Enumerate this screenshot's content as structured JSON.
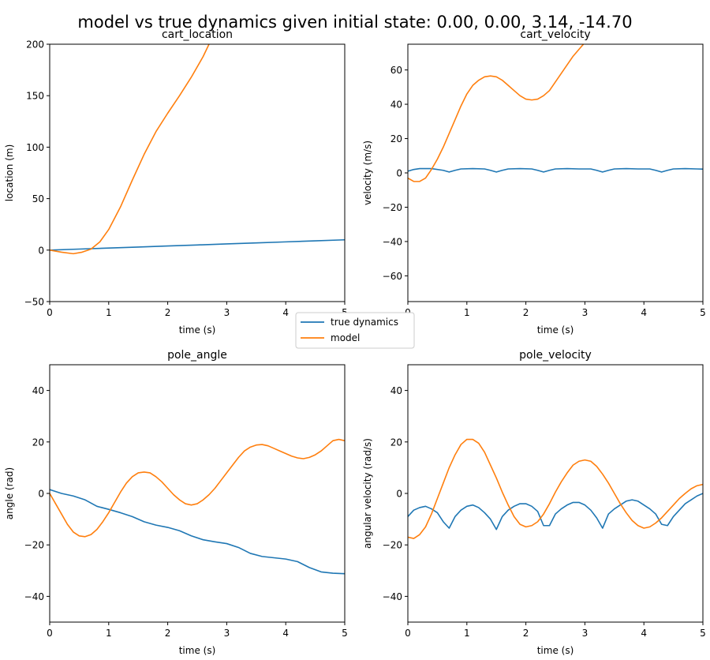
{
  "figure": {
    "suptitle": "model vs true dynamics given initial state: 0.00, 0.00, 3.14, -14.70",
    "colors": {
      "true": "#1f77b4",
      "model": "#ff7f0e"
    }
  },
  "legend": {
    "entries": [
      {
        "label": "true dynamics",
        "color": "#1f77b4"
      },
      {
        "label": "model",
        "color": "#ff7f0e"
      }
    ]
  },
  "chart_data": [
    {
      "type": "line",
      "title": "cart_location",
      "xlabel": "time (s)",
      "ylabel": "location (m)",
      "xlim": [
        0,
        5
      ],
      "ylim": [
        -50,
        200
      ],
      "xticks": [
        "0",
        "1",
        "2",
        "3",
        "4",
        "5"
      ],
      "yticks": [
        "−50",
        "0",
        "50",
        "100",
        "150",
        "200"
      ],
      "ytick_values": [
        -50,
        0,
        50,
        100,
        150,
        200
      ],
      "series": [
        {
          "name": "true dynamics",
          "color": "#1f77b4",
          "x": [
            0,
            0.5,
            1,
            1.5,
            2,
            2.5,
            3,
            3.5,
            4,
            4.5,
            5
          ],
          "y": [
            0,
            1,
            2,
            3,
            4,
            5,
            6,
            7,
            8,
            9,
            10
          ]
        },
        {
          "name": "model",
          "color": "#ff7f0e",
          "x": [
            0,
            0.2,
            0.4,
            0.55,
            0.7,
            0.85,
            1.0,
            1.2,
            1.4,
            1.6,
            1.8,
            2.0,
            2.2,
            2.4,
            2.6,
            2.8
          ],
          "y": [
            0,
            -2,
            -3.5,
            -2,
            1,
            8,
            20,
            42,
            68,
            93,
            115,
            133,
            150,
            168,
            188,
            212
          ]
        }
      ]
    },
    {
      "type": "line",
      "title": "cart_velocity",
      "xlabel": "time (s)",
      "ylabel": "velocity (m/s)",
      "xlim": [
        0,
        5
      ],
      "ylim": [
        -75,
        75
      ],
      "xticks": [
        "0",
        "1",
        "2",
        "3",
        "4",
        "5"
      ],
      "yticks": [
        "−60",
        "−40",
        "−20",
        "0",
        "20",
        "40",
        "60"
      ],
      "ytick_values": [
        -60,
        -40,
        -20,
        0,
        20,
        40,
        60
      ],
      "series": [
        {
          "name": "true dynamics",
          "color": "#1f77b4",
          "x": [
            0,
            0.1,
            0.2,
            0.4,
            0.6,
            0.7,
            0.8,
            0.9,
            1.1,
            1.3,
            1.4,
            1.5,
            1.6,
            1.7,
            1.9,
            2.1,
            2.2,
            2.3,
            2.4,
            2.5,
            2.7,
            2.9,
            3.1,
            3.2,
            3.3,
            3.4,
            3.5,
            3.7,
            3.9,
            4.1,
            4.2,
            4.3,
            4.4,
            4.5,
            4.7,
            4.9,
            5.0
          ],
          "y": [
            1,
            2,
            2.5,
            2.5,
            1.5,
            0.5,
            1.5,
            2.3,
            2.5,
            2.3,
            1.5,
            0.5,
            1.5,
            2.3,
            2.5,
            2.3,
            1.5,
            0.5,
            1.5,
            2.3,
            2.5,
            2.3,
            2.3,
            1.5,
            0.5,
            1.5,
            2.3,
            2.5,
            2.3,
            2.3,
            1.5,
            0.5,
            1.5,
            2.3,
            2.5,
            2.3,
            2.2
          ]
        },
        {
          "name": "model",
          "color": "#ff7f0e",
          "x": [
            0,
            0.1,
            0.2,
            0.3,
            0.4,
            0.5,
            0.6,
            0.7,
            0.8,
            0.9,
            1.0,
            1.1,
            1.2,
            1.3,
            1.4,
            1.5,
            1.6,
            1.7,
            1.8,
            1.9,
            2.0,
            2.1,
            2.2,
            2.3,
            2.4,
            2.5,
            2.6,
            2.7,
            2.8,
            2.9,
            3.0
          ],
          "y": [
            -3,
            -5,
            -5,
            -3,
            2,
            8,
            15,
            23,
            31,
            39,
            46,
            51,
            54,
            56,
            56.5,
            56,
            54,
            51,
            48,
            45,
            43,
            42.5,
            43,
            45,
            48,
            53,
            58,
            63,
            68,
            72,
            76
          ]
        }
      ]
    },
    {
      "type": "line",
      "title": "pole_angle",
      "xlabel": "time (s)",
      "ylabel": "angle (rad)",
      "xlim": [
        0,
        5
      ],
      "ylim": [
        -50,
        50
      ],
      "xticks": [
        "0",
        "1",
        "2",
        "3",
        "4",
        "5"
      ],
      "yticks": [
        "−40",
        "−20",
        "0",
        "20",
        "40"
      ],
      "ytick_values": [
        -40,
        -20,
        0,
        20,
        40
      ],
      "series": [
        {
          "name": "true dynamics",
          "color": "#1f77b4",
          "x": [
            0,
            0.2,
            0.4,
            0.6,
            0.8,
            1.0,
            1.2,
            1.4,
            1.6,
            1.8,
            2.0,
            2.2,
            2.4,
            2.6,
            2.8,
            3.0,
            3.2,
            3.4,
            3.6,
            3.8,
            4.0,
            4.2,
            4.4,
            4.6,
            4.8,
            5.0
          ],
          "y": [
            1.5,
            0,
            -1,
            -2.5,
            -5,
            -6.2,
            -7.5,
            -9,
            -11,
            -12.3,
            -13.2,
            -14.5,
            -16.5,
            -18,
            -18.8,
            -19.5,
            -21,
            -23.3,
            -24.5,
            -25,
            -25.5,
            -26.5,
            -28.8,
            -30.5,
            -31,
            -31.2
          ]
        },
        {
          "name": "model",
          "color": "#ff7f0e",
          "x": [
            0,
            0.1,
            0.2,
            0.3,
            0.4,
            0.5,
            0.6,
            0.7,
            0.8,
            0.9,
            1.0,
            1.1,
            1.2,
            1.3,
            1.4,
            1.5,
            1.6,
            1.7,
            1.8,
            1.9,
            2.0,
            2.1,
            2.2,
            2.3,
            2.4,
            2.5,
            2.6,
            2.7,
            2.8,
            2.9,
            3.0,
            3.1,
            3.2,
            3.3,
            3.4,
            3.5,
            3.6,
            3.7,
            3.8,
            3.9,
            4.0,
            4.1,
            4.2,
            4.3,
            4.4,
            4.5,
            4.6,
            4.7,
            4.8,
            4.9,
            5.0
          ],
          "y": [
            0,
            -4,
            -8,
            -12,
            -15,
            -16.5,
            -16.8,
            -16,
            -14,
            -11,
            -7.5,
            -3.5,
            0.5,
            4,
            6.5,
            8,
            8.3,
            8,
            6.5,
            4.5,
            2,
            -0.5,
            -2.5,
            -4,
            -4.5,
            -4,
            -2.5,
            -0.5,
            2,
            5,
            8,
            11,
            14,
            16.5,
            18,
            18.8,
            19,
            18.5,
            17.5,
            16.5,
            15.5,
            14.5,
            13.8,
            13.5,
            14,
            15,
            16.5,
            18.5,
            20.5,
            21,
            20.5
          ]
        }
      ]
    },
    {
      "type": "line",
      "title": "pole_velocity",
      "xlabel": "time (s)",
      "ylabel": "angular velocity (rad/s)",
      "xlim": [
        0,
        5
      ],
      "ylim": [
        -50,
        50
      ],
      "xticks": [
        "0",
        "1",
        "2",
        "3",
        "4",
        "5"
      ],
      "yticks": [
        "−40",
        "−20",
        "0",
        "20",
        "40"
      ],
      "ytick_values": [
        -40,
        -20,
        0,
        20,
        40
      ],
      "series": [
        {
          "name": "true dynamics",
          "color": "#1f77b4",
          "x": [
            0,
            0.1,
            0.2,
            0.3,
            0.4,
            0.5,
            0.6,
            0.7,
            0.8,
            0.9,
            1.0,
            1.1,
            1.2,
            1.3,
            1.4,
            1.5,
            1.6,
            1.7,
            1.8,
            1.9,
            2.0,
            2.1,
            2.2,
            2.3,
            2.4,
            2.5,
            2.6,
            2.7,
            2.8,
            2.9,
            3.0,
            3.1,
            3.2,
            3.3,
            3.4,
            3.5,
            3.6,
            3.7,
            3.8,
            3.9,
            4.0,
            4.1,
            4.2,
            4.3,
            4.4,
            4.5,
            4.6,
            4.7,
            4.8,
            4.9,
            5.0
          ],
          "y": [
            -9,
            -6.5,
            -5.5,
            -5,
            -6,
            -7.5,
            -11,
            -13.5,
            -9,
            -6.5,
            -5,
            -4.5,
            -5.5,
            -7.5,
            -10,
            -14,
            -9,
            -6.5,
            -5,
            -4,
            -4,
            -5,
            -7,
            -12.5,
            -12.5,
            -8,
            -6,
            -4.5,
            -3.5,
            -3.5,
            -4.5,
            -6.5,
            -9.5,
            -13.5,
            -8,
            -6,
            -4.5,
            -3,
            -2.5,
            -3,
            -4.5,
            -6,
            -8,
            -12,
            -12.5,
            -9,
            -6.5,
            -4,
            -2.5,
            -1,
            0
          ]
        },
        {
          "name": "model",
          "color": "#ff7f0e",
          "x": [
            0,
            0.1,
            0.2,
            0.3,
            0.4,
            0.5,
            0.6,
            0.7,
            0.8,
            0.9,
            1.0,
            1.1,
            1.2,
            1.3,
            1.4,
            1.5,
            1.6,
            1.7,
            1.8,
            1.9,
            2.0,
            2.1,
            2.2,
            2.3,
            2.4,
            2.5,
            2.6,
            2.7,
            2.8,
            2.9,
            3.0,
            3.1,
            3.2,
            3.3,
            3.4,
            3.5,
            3.6,
            3.7,
            3.8,
            3.9,
            4.0,
            4.1,
            4.2,
            4.3,
            4.4,
            4.5,
            4.6,
            4.7,
            4.8,
            4.9,
            5.0
          ],
          "y": [
            -17,
            -17.5,
            -16,
            -13,
            -8,
            -2,
            4,
            10,
            15,
            19,
            21,
            21,
            19.5,
            16,
            11,
            6,
            0.5,
            -4.5,
            -9,
            -12,
            -13,
            -12.5,
            -11,
            -8,
            -4,
            0.5,
            4.5,
            8,
            11,
            12.5,
            13,
            12.5,
            10.5,
            7.5,
            4,
            0,
            -4,
            -7.5,
            -10.5,
            -12.5,
            -13.5,
            -13,
            -11.5,
            -9.5,
            -7,
            -4.5,
            -2,
            0,
            1.8,
            3,
            3.5
          ]
        }
      ]
    }
  ]
}
